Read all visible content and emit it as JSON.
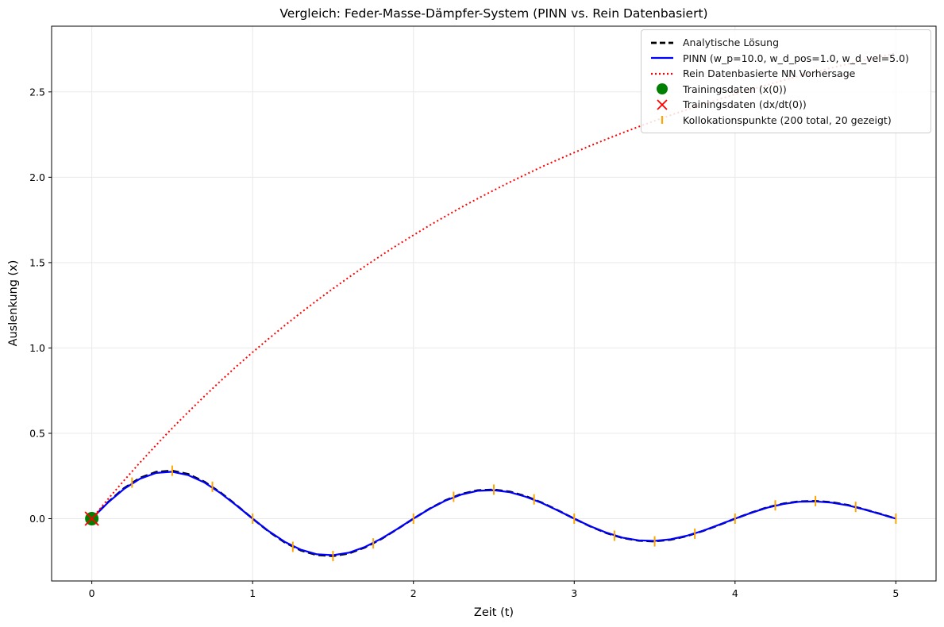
{
  "title": "Vergleich: Feder-Masse-Dämpfer-System (PINN vs. Rein Datenbasiert)",
  "axes": {
    "xlabel": "Zeit (t)",
    "ylabel": "Auslenkung (x)",
    "x_ticks": [
      0,
      1,
      2,
      3,
      4,
      5
    ],
    "x_tick_labels": [
      "0",
      "1",
      "2",
      "3",
      "4",
      "5"
    ],
    "y_ticks": [
      0.0,
      0.5,
      1.0,
      1.5,
      2.0,
      2.5
    ],
    "y_tick_labels": [
      "0.0",
      "0.5",
      "1.0",
      "1.5",
      "2.0",
      "2.5"
    ],
    "grid": true,
    "grid_color": "#e9e9e9"
  },
  "legend": {
    "position": "upper right"
  },
  "chart_data": {
    "type": "line",
    "title": "Vergleich: Feder-Masse-Dämpfer-System (PINN vs. Rein Datenbasiert)",
    "xlabel": "Zeit (t)",
    "ylabel": "Auslenkung (x)",
    "xlim": [
      -0.25,
      5.25
    ],
    "ylim": [
      -0.365,
      2.885
    ],
    "series": [
      {
        "name": "Analytische Lösung",
        "kind": "line",
        "style": "dashed",
        "color": "#000000",
        "lw": 2.6,
        "x": [
          0,
          0.1,
          0.2,
          0.3,
          0.4,
          0.5,
          0.6,
          0.7,
          0.8,
          0.9,
          1,
          1.1,
          1.2,
          1.3,
          1.4,
          1.5,
          1.6,
          1.7,
          1.8,
          1.9,
          2,
          2.1,
          2.2,
          2.3,
          2.4,
          2.5,
          2.6,
          2.7,
          2.8,
          2.9,
          3,
          3.1,
          3.2,
          3.3,
          3.4,
          3.5,
          3.6,
          3.7,
          3.8,
          3.9,
          4,
          4.1,
          4.2,
          4.3,
          4.4,
          4.5,
          4.6,
          4.7,
          4.8,
          4.9,
          5
        ],
        "y": [
          0,
          0.096,
          0.178,
          0.239,
          0.274,
          0.281,
          0.261,
          0.216,
          0.153,
          0.079,
          0,
          -0.075,
          -0.139,
          -0.186,
          -0.213,
          -0.219,
          -0.203,
          -0.168,
          -0.119,
          -0.061,
          0,
          0.058,
          0.108,
          0.145,
          0.166,
          0.17,
          0.158,
          0.131,
          0.093,
          0.048,
          0,
          -0.045,
          -0.084,
          -0.113,
          -0.129,
          -0.133,
          -0.123,
          -0.102,
          -0.072,
          -0.037,
          0,
          0.035,
          0.066,
          0.088,
          0.101,
          0.103,
          0.096,
          0.08,
          0.056,
          0.029,
          0
        ]
      },
      {
        "name": "PINN (w_p=10.0, w_d_pos=1.0, w_d_vel=5.0)",
        "kind": "line",
        "style": "solid",
        "color": "#0000ff",
        "lw": 2.2,
        "x": [
          0,
          0.1,
          0.2,
          0.3,
          0.4,
          0.5,
          0.6,
          0.7,
          0.8,
          0.9,
          1,
          1.1,
          1.2,
          1.3,
          1.4,
          1.5,
          1.6,
          1.7,
          1.8,
          1.9,
          2,
          2.1,
          2.2,
          2.3,
          2.4,
          2.5,
          2.6,
          2.7,
          2.8,
          2.9,
          3,
          3.1,
          3.2,
          3.3,
          3.4,
          3.5,
          3.6,
          3.7,
          3.8,
          3.9,
          4,
          4.1,
          4.2,
          4.3,
          4.4,
          4.5,
          4.6,
          4.7,
          4.8,
          4.9,
          5
        ],
        "y": [
          0,
          0.094,
          0.174,
          0.234,
          0.268,
          0.275,
          0.255,
          0.212,
          0.15,
          0.077,
          0,
          -0.073,
          -0.136,
          -0.182,
          -0.209,
          -0.214,
          -0.199,
          -0.165,
          -0.117,
          -0.06,
          0,
          0.057,
          0.106,
          0.142,
          0.163,
          0.167,
          0.155,
          0.128,
          0.091,
          0.047,
          0,
          -0.044,
          -0.082,
          -0.111,
          -0.127,
          -0.13,
          -0.121,
          -0.1,
          -0.071,
          -0.036,
          0,
          0.034,
          0.064,
          0.086,
          0.099,
          0.101,
          0.094,
          0.078,
          0.055,
          0.028,
          0
        ]
      },
      {
        "name": "Rein Datenbasierte NN Vorhersage",
        "kind": "line",
        "style": "dotted",
        "color": "#ff0000",
        "lw": 2,
        "x": [
          0,
          0.1,
          0.2,
          0.3,
          0.4,
          0.5,
          0.6,
          0.7,
          0.8,
          0.9,
          1,
          1.1,
          1.2,
          1.3,
          1.4,
          1.5,
          1.6,
          1.7,
          1.8,
          1.9,
          2,
          2.1,
          2.2,
          2.3,
          2.4,
          2.5,
          2.6,
          2.7,
          2.8,
          2.9,
          3,
          3.1,
          3.2,
          3.3,
          3.4,
          3.5,
          3.6,
          3.7,
          3.8,
          3.9,
          4,
          4.1,
          4.2,
          4.3,
          4.4,
          4.5,
          4.6,
          4.7,
          4.8,
          4.9,
          5
        ],
        "y": [
          0,
          0.114,
          0.223,
          0.329,
          0.431,
          0.53,
          0.625,
          0.717,
          0.806,
          0.892,
          0.975,
          1.054,
          1.132,
          1.206,
          1.278,
          1.348,
          1.415,
          1.48,
          1.542,
          1.603,
          1.661,
          1.718,
          1.772,
          1.825,
          1.875,
          1.924,
          1.972,
          2.017,
          2.062,
          2.104,
          2.145,
          2.185,
          2.223,
          2.26,
          2.296,
          2.331,
          2.364,
          2.396,
          2.427,
          2.457,
          2.486,
          2.514,
          2.541,
          2.568,
          2.593,
          2.617,
          2.641,
          2.663,
          2.685,
          2.706,
          2.727
        ]
      },
      {
        "name": "Trainingsdaten (x(0))",
        "kind": "scatter",
        "marker": "circle",
        "color": "#008000",
        "size": 17,
        "x": [
          0
        ],
        "y": [
          0
        ]
      },
      {
        "name": "Trainingsdaten (dx/dt(0))",
        "kind": "scatter",
        "marker": "x",
        "color": "#ff0000",
        "size": 17,
        "x": [
          0
        ],
        "y": [
          0
        ]
      },
      {
        "name": "Kollokationspunkte (200 total, 20 gezeigt)",
        "kind": "scatter",
        "marker": "vline",
        "color": "#ffa500",
        "size": 13,
        "x": [
          0.25,
          0.5,
          0.75,
          1,
          1.25,
          1.5,
          1.75,
          2,
          2.25,
          2.5,
          2.75,
          3,
          3.25,
          3.5,
          3.75,
          4,
          4.25,
          4.5,
          4.75,
          5
        ],
        "y": [
          0.211,
          0.281,
          0.187,
          0,
          -0.165,
          -0.219,
          -0.145,
          0,
          0.128,
          0.17,
          0.113,
          0,
          -0.1,
          -0.133,
          -0.088,
          0,
          0.078,
          0.103,
          0.069,
          0
        ]
      }
    ]
  }
}
